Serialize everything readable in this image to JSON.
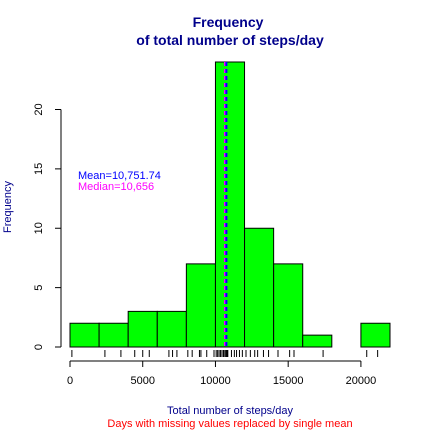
{
  "chart_data": {
    "type": "bar",
    "title": [
      "Frequency",
      "of total number of steps/day"
    ],
    "xlabel": "Total number of steps/day",
    "subtitle": "Days with missing values replaced by single mean",
    "ylabel": "Frequency",
    "xlim": [
      0,
      22000
    ],
    "ylim": [
      0,
      24
    ],
    "x_ticks": [
      0,
      5000,
      10000,
      15000,
      20000
    ],
    "y_ticks": [
      0,
      5,
      10,
      15,
      20
    ],
    "bins": [
      {
        "start": 0,
        "end": 2000,
        "count": 2
      },
      {
        "start": 2000,
        "end": 4000,
        "count": 2
      },
      {
        "start": 4000,
        "end": 6000,
        "count": 3
      },
      {
        "start": 6000,
        "end": 8000,
        "count": 3
      },
      {
        "start": 8000,
        "end": 10000,
        "count": 7
      },
      {
        "start": 10000,
        "end": 12000,
        "count": 24
      },
      {
        "start": 12000,
        "end": 14000,
        "count": 10
      },
      {
        "start": 14000,
        "end": 16000,
        "count": 7
      },
      {
        "start": 16000,
        "end": 18000,
        "count": 1
      },
      {
        "start": 18000,
        "end": 20000,
        "count": 0
      },
      {
        "start": 20000,
        "end": 22000,
        "count": 2
      }
    ],
    "rug": [
      130,
      2400,
      3500,
      4450,
      5000,
      5450,
      6800,
      7050,
      7350,
      8100,
      8400,
      8900,
      9000,
      9400,
      9900,
      10050,
      10150,
      10250,
      10350,
      10450,
      10550,
      10600,
      10700,
      10751,
      10800,
      10850,
      11100,
      11300,
      11450,
      11650,
      11850,
      12100,
      12400,
      12700,
      12900,
      13300,
      13650,
      14300,
      15100,
      15400,
      17400,
      20400,
      21150
    ],
    "mean": 10751.74,
    "median": 10656,
    "mean_label": "Mean=10,751.74",
    "median_label": "Median=10,656",
    "colors": {
      "bar_fill": "#00ff00",
      "bar_stroke": "#000000",
      "title": "#00008b",
      "xlabel": "#00008b",
      "ylabel": "#00008b",
      "subtitle": "#ff0000",
      "mean_line": "#0000ff",
      "median_line": "#ff00ff",
      "mean_text": "#0000ff",
      "median_text": "#ff00ff"
    },
    "grid": false,
    "legend_position": "left"
  }
}
